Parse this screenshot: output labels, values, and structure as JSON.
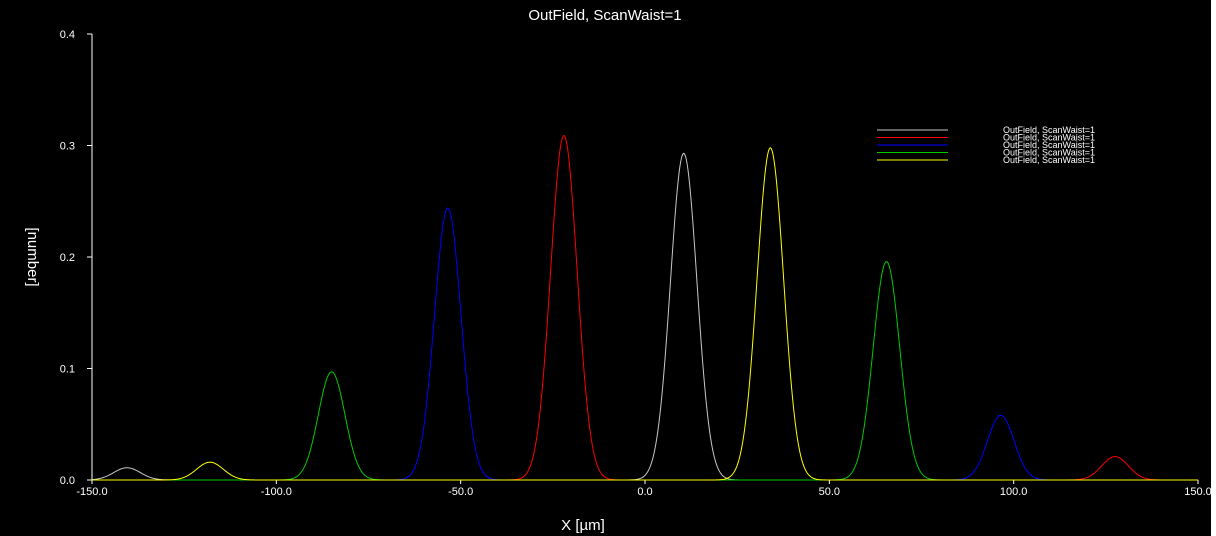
{
  "window": {
    "background": "#000000",
    "axis_color": "#ffffff"
  },
  "chart_data": {
    "type": "line",
    "title": "OutField, ScanWaist=1",
    "xlabel": "X [µm]",
    "ylabel": "[number]",
    "xlim": [
      -150,
      150
    ],
    "ylim": [
      0,
      0.4
    ],
    "xticks": [
      -150,
      -100,
      -50,
      0,
      50,
      100,
      150
    ],
    "xtick_labels": [
      "-150.0",
      "-100.0",
      "-50.0",
      "0.0",
      "50.0",
      "100.0",
      "150.0"
    ],
    "yticks": [
      0,
      0.1,
      0.2,
      0.3,
      0.4
    ],
    "ytick_labels": [
      "0.0",
      "0.1",
      "0.2",
      "0.3",
      "0.4"
    ],
    "grid": false,
    "legend_position": "top-right",
    "peak_sigma": 3.6,
    "series": [
      {
        "name": "OutField, ScanWaist=1",
        "color": "#c8c8c8",
        "peaks": [
          {
            "x": -140.5,
            "y": 0.011
          },
          {
            "x": 10.5,
            "y": 0.293
          }
        ]
      },
      {
        "name": "OutField, ScanWaist=1",
        "color": "#ff0000",
        "peaks": [
          {
            "x": -22.0,
            "y": 0.309
          },
          {
            "x": 127.5,
            "y": 0.021
          }
        ]
      },
      {
        "name": "OutField, ScanWaist=1",
        "color": "#0000ff",
        "peaks": [
          {
            "x": -53.5,
            "y": 0.244
          },
          {
            "x": 96.5,
            "y": 0.058
          }
        ]
      },
      {
        "name": "OutField, ScanWaist=1",
        "color": "#00c800",
        "peaks": [
          {
            "x": -85.0,
            "y": 0.097
          },
          {
            "x": 65.5,
            "y": 0.196
          }
        ]
      },
      {
        "name": "OutField, ScanWaist=1",
        "color": "#ffff00",
        "peaks": [
          {
            "x": -118.0,
            "y": 0.016
          },
          {
            "x": 34.0,
            "y": 0.298
          }
        ]
      }
    ]
  }
}
